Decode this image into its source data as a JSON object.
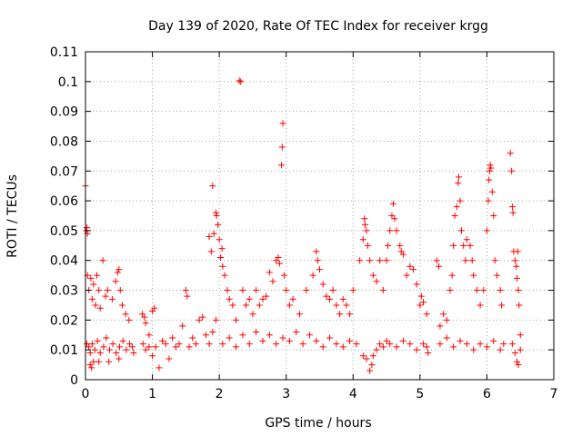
{
  "chart_data": {
    "type": "scatter",
    "title": "Day 139 of 2020, Rate Of TEC Index for receiver krgg",
    "xlabel": "GPS time / hours",
    "ylabel": "ROTI / TECUs",
    "xlim": [
      0,
      7
    ],
    "ylim": [
      0,
      0.11
    ],
    "x_ticks": [
      0,
      1,
      2,
      3,
      4,
      5,
      6,
      7
    ],
    "x_tick_labels": [
      "0",
      "1",
      "2",
      "3",
      "4",
      "5",
      "6",
      "7"
    ],
    "y_ticks": [
      0,
      0.01,
      0.02,
      0.03,
      0.04,
      0.05,
      0.06,
      0.07,
      0.08,
      0.09,
      0.1,
      0.11
    ],
    "y_tick_labels": [
      "0",
      "0.01",
      "0.02",
      "0.03",
      "0.04",
      "0.05",
      "0.06",
      "0.07",
      "0.08",
      "0.09",
      "0.1",
      "0.11"
    ],
    "grid": true,
    "marker": "plus",
    "color": "#ff0000",
    "series": [
      {
        "name": "ROTI",
        "points": [
          [
            0.0,
            0.065
          ],
          [
            0.01,
            0.05
          ],
          [
            0.02,
            0.051
          ],
          [
            0.03,
            0.049
          ],
          [
            0.03,
            0.035
          ],
          [
            0.05,
            0.03
          ],
          [
            0.08,
            0.034
          ],
          [
            0.1,
            0.027
          ],
          [
            0.12,
            0.032
          ],
          [
            0.15,
            0.025
          ],
          [
            0.17,
            0.035
          ],
          [
            0.2,
            0.03
          ],
          [
            0.22,
            0.024
          ],
          [
            0.26,
            0.04
          ],
          [
            0.3,
            0.028
          ],
          [
            0.33,
            0.03
          ],
          [
            0.4,
            0.027
          ],
          [
            0.45,
            0.033
          ],
          [
            0.48,
            0.036
          ],
          [
            0.5,
            0.037
          ],
          [
            0.52,
            0.03
          ],
          [
            0.55,
            0.025
          ],
          [
            0.6,
            0.022
          ],
          [
            0.65,
            0.02
          ],
          [
            0.07,
            0.005
          ],
          [
            0.09,
            0.004
          ],
          [
            0.12,
            0.006
          ],
          [
            0.2,
            0.006
          ],
          [
            0.35,
            0.006
          ],
          [
            0.5,
            0.007
          ],
          [
            0.02,
            0.012
          ],
          [
            0.05,
            0.011
          ],
          [
            0.07,
            0.009
          ],
          [
            0.1,
            0.012
          ],
          [
            0.14,
            0.01
          ],
          [
            0.18,
            0.013
          ],
          [
            0.22,
            0.009
          ],
          [
            0.27,
            0.011
          ],
          [
            0.31,
            0.014
          ],
          [
            0.36,
            0.01
          ],
          [
            0.41,
            0.012
          ],
          [
            0.46,
            0.009
          ],
          [
            0.51,
            0.011
          ],
          [
            0.56,
            0.013
          ],
          [
            0.61,
            0.01
          ],
          [
            0.66,
            0.012
          ],
          [
            0.7,
            0.011
          ],
          [
            0.72,
            0.009
          ],
          [
            0.85,
            0.022
          ],
          [
            0.88,
            0.021
          ],
          [
            0.9,
            0.019
          ],
          [
            0.95,
            0.015
          ],
          [
            1.0,
            0.023
          ],
          [
            1.03,
            0.024
          ],
          [
            0.86,
            0.012
          ],
          [
            0.9,
            0.01
          ],
          [
            0.95,
            0.011
          ],
          [
            1.0,
            0.008
          ],
          [
            1.05,
            0.011
          ],
          [
            1.1,
            0.004
          ],
          [
            1.15,
            0.013
          ],
          [
            1.2,
            0.012
          ],
          [
            1.25,
            0.007
          ],
          [
            1.3,
            0.014
          ],
          [
            1.35,
            0.011
          ],
          [
            1.4,
            0.012
          ],
          [
            1.45,
            0.018
          ],
          [
            1.5,
            0.03
          ],
          [
            1.52,
            0.028
          ],
          [
            1.55,
            0.011
          ],
          [
            1.6,
            0.014
          ],
          [
            1.65,
            0.012
          ],
          [
            1.7,
            0.02
          ],
          [
            1.75,
            0.021
          ],
          [
            1.8,
            0.015
          ],
          [
            1.85,
            0.012
          ],
          [
            1.9,
            0.016
          ],
          [
            1.95,
            0.02
          ],
          [
            1.85,
            0.048
          ],
          [
            1.88,
            0.043
          ],
          [
            1.9,
            0.065
          ],
          [
            1.92,
            0.049
          ],
          [
            1.95,
            0.056
          ],
          [
            1.96,
            0.055
          ],
          [
            1.98,
            0.052
          ],
          [
            2.0,
            0.047
          ],
          [
            2.02,
            0.041
          ],
          [
            2.04,
            0.044
          ],
          [
            2.05,
            0.038
          ],
          [
            2.08,
            0.035
          ],
          [
            2.12,
            0.03
          ],
          [
            2.15,
            0.027
          ],
          [
            2.2,
            0.025
          ],
          [
            2.25,
            0.02
          ],
          [
            2.3,
            0.1003
          ],
          [
            2.32,
            0.1
          ],
          [
            2.35,
            0.03
          ],
          [
            2.4,
            0.025
          ],
          [
            2.45,
            0.027
          ],
          [
            2.5,
            0.022
          ],
          [
            2.55,
            0.03
          ],
          [
            2.6,
            0.025
          ],
          [
            2.65,
            0.027
          ],
          [
            2.7,
            0.028
          ],
          [
            2.75,
            0.036
          ],
          [
            2.8,
            0.033
          ],
          [
            2.85,
            0.04
          ],
          [
            2.88,
            0.041
          ],
          [
            2.9,
            0.039
          ],
          [
            2.93,
            0.072
          ],
          [
            2.94,
            0.078
          ],
          [
            2.95,
            0.086
          ],
          [
            2.97,
            0.035
          ],
          [
            3.0,
            0.03
          ],
          [
            2.05,
            0.012
          ],
          [
            2.15,
            0.014
          ],
          [
            2.25,
            0.011
          ],
          [
            2.35,
            0.015
          ],
          [
            2.45,
            0.012
          ],
          [
            2.55,
            0.016
          ],
          [
            2.65,
            0.013
          ],
          [
            2.75,
            0.015
          ],
          [
            2.85,
            0.012
          ],
          [
            2.95,
            0.014
          ],
          [
            3.05,
            0.013
          ],
          [
            3.15,
            0.016
          ],
          [
            3.25,
            0.012
          ],
          [
            3.35,
            0.015
          ],
          [
            3.45,
            0.013
          ],
          [
            3.55,
            0.011
          ],
          [
            3.65,
            0.014
          ],
          [
            3.75,
            0.012
          ],
          [
            3.05,
            0.025
          ],
          [
            3.1,
            0.027
          ],
          [
            3.2,
            0.022
          ],
          [
            3.3,
            0.03
          ],
          [
            3.4,
            0.035
          ],
          [
            3.45,
            0.043
          ],
          [
            3.47,
            0.04
          ],
          [
            3.5,
            0.037
          ],
          [
            3.55,
            0.032
          ],
          [
            3.6,
            0.028
          ],
          [
            3.65,
            0.027
          ],
          [
            3.7,
            0.03
          ],
          [
            3.75,
            0.025
          ],
          [
            3.8,
            0.022
          ],
          [
            3.85,
            0.027
          ],
          [
            3.9,
            0.025
          ],
          [
            3.95,
            0.022
          ],
          [
            4.0,
            0.03
          ],
          [
            3.85,
            0.011
          ],
          [
            3.95,
            0.013
          ],
          [
            4.05,
            0.012
          ],
          [
            4.15,
            0.008
          ],
          [
            4.2,
            0.007
          ],
          [
            4.25,
            0.003
          ],
          [
            4.28,
            0.005
          ],
          [
            4.3,
            0.008
          ],
          [
            4.35,
            0.01
          ],
          [
            4.4,
            0.012
          ],
          [
            4.45,
            0.011
          ],
          [
            4.5,
            0.013
          ],
          [
            4.1,
            0.04
          ],
          [
            4.15,
            0.047
          ],
          [
            4.17,
            0.054
          ],
          [
            4.18,
            0.052
          ],
          [
            4.2,
            0.05
          ],
          [
            4.22,
            0.045
          ],
          [
            4.25,
            0.04
          ],
          [
            4.3,
            0.035
          ],
          [
            4.35,
            0.033
          ],
          [
            4.4,
            0.04
          ],
          [
            4.45,
            0.03
          ],
          [
            4.5,
            0.04
          ],
          [
            4.52,
            0.045
          ],
          [
            4.55,
            0.05
          ],
          [
            4.58,
            0.055
          ],
          [
            4.6,
            0.059
          ],
          [
            4.62,
            0.054
          ],
          [
            4.65,
            0.05
          ],
          [
            4.7,
            0.045
          ],
          [
            4.72,
            0.043
          ],
          [
            4.75,
            0.042
          ],
          [
            4.8,
            0.035
          ],
          [
            4.85,
            0.038
          ],
          [
            4.9,
            0.037
          ],
          [
            4.95,
            0.032
          ],
          [
            5.0,
            0.025
          ],
          [
            5.02,
            0.028
          ],
          [
            5.05,
            0.026
          ],
          [
            5.1,
            0.022
          ],
          [
            4.55,
            0.012
          ],
          [
            4.65,
            0.011
          ],
          [
            4.75,
            0.013
          ],
          [
            4.85,
            0.012
          ],
          [
            4.95,
            0.01
          ],
          [
            5.05,
            0.012
          ],
          [
            5.1,
            0.011
          ],
          [
            5.12,
            0.009
          ],
          [
            5.25,
            0.04
          ],
          [
            5.28,
            0.038
          ],
          [
            5.3,
            0.018
          ],
          [
            5.35,
            0.022
          ],
          [
            5.4,
            0.02
          ],
          [
            5.45,
            0.03
          ],
          [
            5.48,
            0.035
          ],
          [
            5.5,
            0.045
          ],
          [
            5.52,
            0.055
          ],
          [
            5.55,
            0.058
          ],
          [
            5.57,
            0.066
          ],
          [
            5.58,
            0.068
          ],
          [
            5.6,
            0.06
          ],
          [
            5.62,
            0.05
          ],
          [
            5.65,
            0.045
          ],
          [
            5.68,
            0.04
          ],
          [
            5.7,
            0.047
          ],
          [
            5.75,
            0.045
          ],
          [
            5.78,
            0.04
          ],
          [
            5.8,
            0.035
          ],
          [
            5.85,
            0.03
          ],
          [
            5.9,
            0.025
          ],
          [
            5.95,
            0.03
          ],
          [
            6.0,
            0.05
          ],
          [
            6.02,
            0.06
          ],
          [
            6.03,
            0.067
          ],
          [
            6.04,
            0.07
          ],
          [
            6.05,
            0.072
          ],
          [
            6.06,
            0.071
          ],
          [
            6.08,
            0.063
          ],
          [
            6.1,
            0.055
          ],
          [
            6.12,
            0.04
          ],
          [
            6.15,
            0.035
          ],
          [
            6.2,
            0.03
          ],
          [
            6.22,
            0.025
          ],
          [
            5.3,
            0.012
          ],
          [
            5.4,
            0.014
          ],
          [
            5.5,
            0.011
          ],
          [
            5.6,
            0.013
          ],
          [
            5.7,
            0.012
          ],
          [
            5.8,
            0.01
          ],
          [
            5.9,
            0.012
          ],
          [
            6.0,
            0.011
          ],
          [
            6.1,
            0.013
          ],
          [
            6.2,
            0.01
          ],
          [
            6.25,
            0.012
          ],
          [
            6.35,
            0.076
          ],
          [
            6.37,
            0.07
          ],
          [
            6.38,
            0.058
          ],
          [
            6.39,
            0.056
          ],
          [
            6.4,
            0.043
          ],
          [
            6.42,
            0.04
          ],
          [
            6.44,
            0.038
          ],
          [
            6.45,
            0.034
          ],
          [
            6.46,
            0.043
          ],
          [
            6.47,
            0.03
          ],
          [
            6.48,
            0.025
          ],
          [
            6.5,
            0.015
          ],
          [
            6.38,
            0.012
          ],
          [
            6.42,
            0.009
          ],
          [
            6.45,
            0.006
          ],
          [
            6.47,
            0.005
          ],
          [
            6.5,
            0.01
          ]
        ]
      }
    ]
  }
}
